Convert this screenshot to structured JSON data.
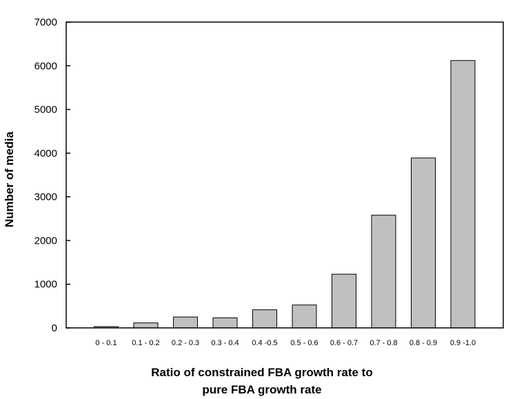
{
  "chart_data": {
    "type": "bar",
    "title": "",
    "xlabel_lines": [
      "Ratio of constrained FBA growth rate to",
      "pure FBA growth rate"
    ],
    "ylabel": "Number of media",
    "categories": [
      "0 - 0.1",
      "0.1 - 0.2",
      "0.2 - 0.3",
      "0.3 - 0.4",
      "0.4 -0.5",
      "0.5 - 0.6",
      "0.6 - 0.7",
      "0.7 - 0.8",
      "0.8 - 0.9",
      "0.9 -1.0"
    ],
    "values": [
      30,
      115,
      250,
      230,
      415,
      525,
      1230,
      2580,
      3890,
      6120
    ],
    "ylim": [
      0,
      7000
    ],
    "yticks": [
      0,
      1000,
      2000,
      3000,
      4000,
      5000,
      6000,
      7000
    ],
    "grid": false,
    "colors": {
      "bar_fill": "#c0c0c0",
      "bar_stroke": "#000000",
      "axis": "#000000"
    }
  }
}
